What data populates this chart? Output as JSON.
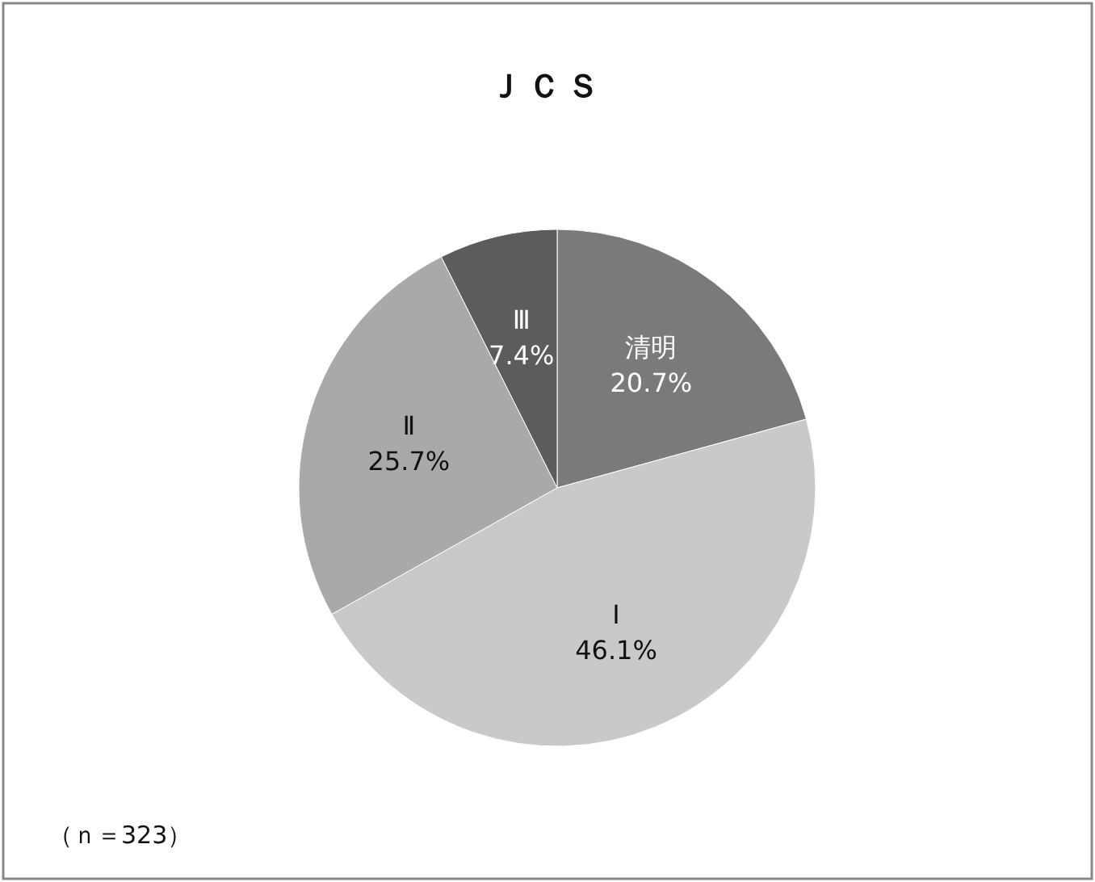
{
  "chart_data": {
    "type": "pie",
    "title": "ＪＣＳ",
    "categories": [
      "清明",
      "Ⅰ",
      "Ⅱ",
      "Ⅲ"
    ],
    "values": [
      20.7,
      46.1,
      25.7,
      7.4
    ],
    "value_labels": [
      "20.7%",
      "46.1%",
      "25.7%",
      "7.4%"
    ],
    "colors": [
      "#7a7a7a",
      "#c9c9c9",
      "#a9a9a9",
      "#5c5c5c"
    ],
    "annotations": [
      "（ｎ＝323）"
    ]
  }
}
